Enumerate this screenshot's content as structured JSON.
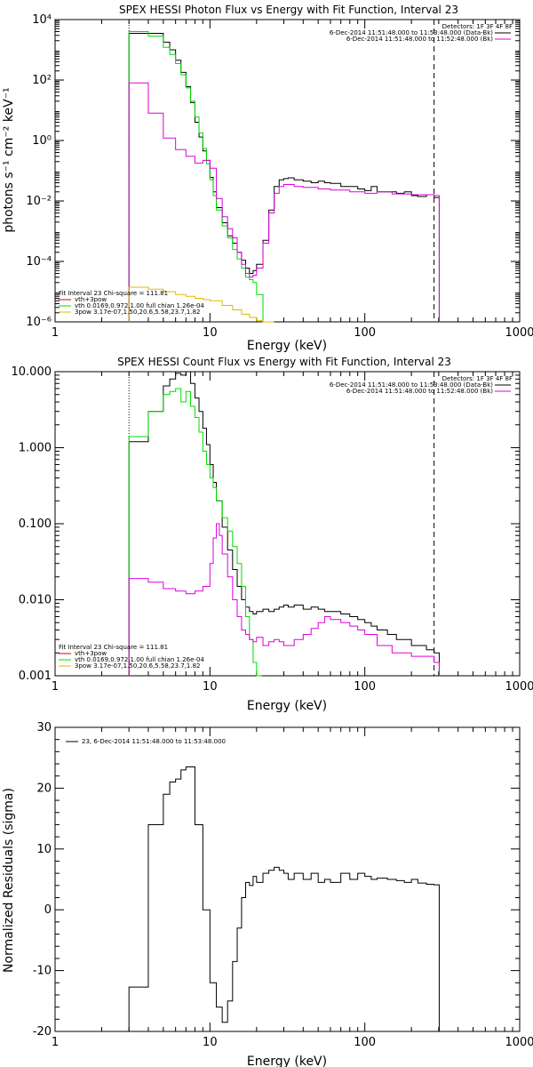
{
  "chart_data": [
    {
      "type": "line",
      "title": "SPEX HESSI Photon Flux vs Energy with Fit Function, Interval 23",
      "xlabel": "Energy (keV)",
      "ylabel": "photons s⁻¹ cm⁻² keV⁻¹",
      "xscale": "log",
      "yscale": "log",
      "xlim": [
        1,
        1000
      ],
      "ylim": [
        1e-06,
        10000.0
      ],
      "xticks": [
        "1",
        "10",
        "100",
        "1000"
      ],
      "yticks": [
        "10⁻⁶",
        "10⁻⁴",
        "10⁻²",
        "10⁰",
        "10²",
        "10⁴"
      ],
      "legend_topright": [
        "Detectors: 1F 3F 4F 8F",
        "6-Dec-2014 11:51:48.000 to 11:53:48.000 (Data-Bk)",
        "6-Dec-2014 11:51:48.000 to 11:52:48.000 (Bk)"
      ],
      "legend_bottomleft": [
        "Fit Interval 23   Chi-square = 111.81",
        "vth+3pow",
        "vth 0.0169,0.972,1.00  full chian 1.26e-04",
        "3pow 3.17e-07,1.50,20.6,5.58,23.7,1.82"
      ],
      "vlines": [
        3,
        280
      ],
      "series": [
        {
          "color": "#000000",
          "x": [
            3,
            4,
            5,
            5.5,
            6,
            6.5,
            7,
            7.5,
            8,
            8.5,
            9,
            9.5,
            10,
            10.5,
            11,
            12,
            13,
            14,
            15,
            16,
            17,
            18,
            19,
            20,
            22,
            24,
            26,
            28,
            30,
            32,
            35,
            40,
            45,
            50,
            55,
            60,
            70,
            80,
            90,
            100,
            110,
            120,
            140,
            160,
            180,
            200,
            220,
            250,
            280
          ],
          "y": [
            3500,
            3500,
            1800,
            1000,
            450,
            180,
            60,
            18,
            4,
            1.3,
            0.45,
            0.22,
            0.06,
            0.02,
            0.006,
            0.0019,
            0.0007,
            0.0004,
            0.0002,
            0.00011,
            6e-05,
            4e-05,
            5e-05,
            8e-05,
            0.0005,
            0.005,
            0.03,
            0.05,
            0.055,
            0.058,
            0.05,
            0.045,
            0.04,
            0.045,
            0.04,
            0.038,
            0.03,
            0.03,
            0.025,
            0.022,
            0.03,
            0.02,
            0.02,
            0.018,
            0.02,
            0.015,
            0.014,
            0.016,
            0.013
          ]
        },
        {
          "color": "#00dd00",
          "x": [
            3,
            4,
            5,
            5.5,
            6,
            6.5,
            7,
            7.5,
            8,
            8.5,
            9,
            9.5,
            10,
            10.5,
            11,
            12,
            13,
            14,
            15,
            16,
            17,
            18,
            19,
            20,
            22
          ],
          "y": [
            4000,
            2800,
            1200,
            700,
            350,
            150,
            55,
            20,
            6,
            1.8,
            0.55,
            0.17,
            0.05,
            0.015,
            0.005,
            0.0015,
            0.0006,
            0.00025,
            0.00012,
            6e-05,
            3e-05,
            2.5e-05,
            2e-05,
            8e-06,
            1e-06
          ]
        },
        {
          "color": "#dd00dd",
          "x": [
            3,
            4,
            5,
            6,
            7,
            8,
            9,
            10,
            11,
            12,
            13,
            14,
            15,
            16,
            17,
            18,
            19,
            20,
            22,
            24,
            26,
            28,
            30,
            32,
            35,
            40,
            50,
            60,
            80,
            100,
            120,
            150,
            200,
            280
          ],
          "y": [
            80,
            8,
            1.2,
            0.5,
            0.3,
            0.18,
            0.22,
            0.12,
            0.012,
            0.003,
            0.0012,
            0.0006,
            0.0002,
            8e-05,
            4e-05,
            3e-05,
            3.5e-05,
            6e-05,
            0.0004,
            0.004,
            0.018,
            0.03,
            0.035,
            0.035,
            0.03,
            0.028,
            0.025,
            0.023,
            0.02,
            0.018,
            0.02,
            0.017,
            0.016,
            0.015
          ]
        },
        {
          "color": "#ddbb00",
          "x": [
            3,
            4,
            5,
            6,
            7,
            8,
            9,
            10,
            12,
            14,
            16,
            18,
            20,
            22,
            24
          ],
          "y": [
            1.4e-05,
            1.2e-05,
            1e-05,
            8e-06,
            7e-06,
            6e-06,
            5.5e-06,
            5e-06,
            3.5e-06,
            2.5e-06,
            1.8e-06,
            1.4e-06,
            1.1e-06,
            9e-07,
            7e-07
          ]
        }
      ]
    },
    {
      "type": "line",
      "title": "SPEX HESSI Count Flux vs Energy with Fit Function, Interval 23",
      "xlabel": "Energy (keV)",
      "ylabel": "",
      "xscale": "log",
      "yscale": "log",
      "xlim": [
        1,
        1000
      ],
      "ylim": [
        0.001,
        10
      ],
      "xticks": [
        "1",
        "10",
        "100",
        "1000"
      ],
      "yticks": [
        "0.001",
        "0.010",
        "0.100",
        "1.000",
        "10.000"
      ],
      "legend_topright": [
        "Detectors: 1F 3F 4F 8F",
        "6-Dec-2014 11:51:48.000 to 11:53:48.000 (Data-Bk)",
        "6-Dec-2014 11:51:48.000 to 11:52:48.000 (Bk)"
      ],
      "legend_bottomleft": [
        "Fit Interval 23   Chi-square = 111.81",
        "vth+3pow",
        "vth 0.0169,0.972,1.00  full chian 1.26e-04",
        "3pow 3.17e-07,1.50,20.6,5.58,23.7,1.82"
      ],
      "vlines": [
        3,
        280
      ],
      "series": [
        {
          "color": "#000000",
          "x": [
            3,
            4,
            5,
            5.5,
            6,
            6.5,
            7,
            7.5,
            8,
            8.5,
            9,
            9.5,
            10,
            10.5,
            11,
            12,
            13,
            14,
            15,
            16,
            17,
            18,
            19,
            20,
            22,
            24,
            26,
            28,
            30,
            32,
            35,
            40,
            45,
            50,
            55,
            60,
            70,
            80,
            90,
            100,
            110,
            120,
            140,
            160,
            180,
            200,
            220,
            250,
            280
          ],
          "y": [
            1.2,
            3,
            6.5,
            8,
            9.5,
            9,
            10,
            7,
            4.5,
            3,
            1.8,
            1.1,
            0.6,
            0.35,
            0.2,
            0.09,
            0.045,
            0.025,
            0.015,
            0.01,
            0.008,
            0.007,
            0.0065,
            0.007,
            0.0075,
            0.007,
            0.0075,
            0.008,
            0.0085,
            0.008,
            0.0085,
            0.0075,
            0.008,
            0.0075,
            0.007,
            0.007,
            0.0065,
            0.006,
            0.0055,
            0.005,
            0.0045,
            0.004,
            0.0035,
            0.003,
            0.003,
            0.0025,
            0.0025,
            0.0022,
            0.002
          ]
        },
        {
          "color": "#00dd00",
          "x": [
            3,
            4,
            5,
            5.5,
            6,
            6.5,
            7,
            7.5,
            8,
            8.5,
            9,
            9.5,
            10,
            10.5,
            11,
            12,
            13,
            14,
            15,
            16,
            17,
            18,
            19,
            20
          ],
          "y": [
            1.4,
            3,
            5,
            5.5,
            6,
            4,
            5.5,
            3.5,
            2.5,
            1.6,
            0.9,
            0.6,
            0.4,
            0.3,
            0.2,
            0.12,
            0.08,
            0.05,
            0.03,
            0.015,
            0.006,
            0.003,
            0.0015,
            0.001
          ]
        },
        {
          "color": "#dd00dd",
          "x": [
            3,
            4,
            5,
            6,
            7,
            8,
            9,
            10,
            10.5,
            11,
            11.5,
            12,
            13,
            14,
            15,
            16,
            17,
            18,
            19,
            20,
            22,
            24,
            26,
            28,
            30,
            35,
            40,
            45,
            50,
            55,
            60,
            70,
            80,
            90,
            100,
            120,
            150,
            200,
            280
          ],
          "y": [
            0.019,
            0.017,
            0.014,
            0.013,
            0.012,
            0.013,
            0.015,
            0.03,
            0.065,
            0.1,
            0.07,
            0.04,
            0.02,
            0.01,
            0.006,
            0.004,
            0.0035,
            0.003,
            0.0028,
            0.0032,
            0.0025,
            0.0028,
            0.003,
            0.0028,
            0.0025,
            0.003,
            0.0035,
            0.0042,
            0.005,
            0.006,
            0.0055,
            0.005,
            0.0045,
            0.004,
            0.0035,
            0.0025,
            0.002,
            0.0018,
            0.0015
          ]
        },
        {
          "color": "#ddbb00",
          "x": [],
          "y": []
        }
      ]
    },
    {
      "type": "line",
      "title": "",
      "xlabel": "Energy (keV)",
      "ylabel": "Normalized Residuals (sigma)",
      "xscale": "log",
      "yscale": "linear",
      "xlim": [
        1,
        1000
      ],
      "ylim": [
        -20,
        30
      ],
      "xticks": [
        "1",
        "10",
        "100",
        "1000"
      ],
      "yticks": [
        "-20",
        "-10",
        "0",
        "10",
        "20",
        "30"
      ],
      "legend_topleft": [
        "23,  6-Dec-2014 11:51:48.000 to 11:53:48.000"
      ],
      "series": [
        {
          "color": "#000000",
          "x": [
            3,
            4,
            5,
            5.5,
            6,
            6.5,
            7,
            8,
            9,
            10,
            11,
            12,
            13,
            14,
            15,
            16,
            17,
            18,
            19,
            20,
            22,
            24,
            26,
            28,
            30,
            32,
            35,
            40,
            45,
            50,
            55,
            60,
            70,
            80,
            90,
            100,
            110,
            120,
            140,
            160,
            180,
            200,
            220,
            250,
            280
          ],
          "y": [
            -12.7,
            14,
            19,
            21,
            21.5,
            23,
            23.5,
            14,
            0,
            -12,
            -16,
            -18.5,
            -15,
            -8.5,
            -3,
            2,
            4.5,
            4,
            5.5,
            4.5,
            6,
            6.5,
            7,
            6.5,
            6,
            5,
            6,
            5,
            6,
            4.5,
            5,
            4.5,
            6,
            5,
            6,
            5.5,
            5,
            5.2,
            5,
            4.8,
            4.5,
            5,
            4.4,
            4.2,
            4.1
          ]
        }
      ]
    }
  ]
}
